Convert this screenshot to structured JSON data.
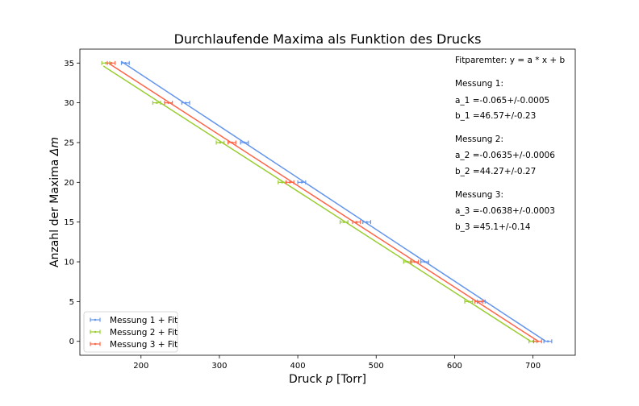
{
  "chart_data": {
    "type": "scatter",
    "title": "Durchlaufende Maxima als Funktion des Drucks",
    "xlabel_prefix": "Druck ",
    "xlabel_var": "p",
    "xlabel_suffix": " [Torr]",
    "ylabel_prefix": "Anzahl der Maxima ",
    "ylabel_var": "Δm",
    "xlim": [
      122,
      754
    ],
    "ylim": [
      -1.75,
      36.75
    ],
    "xticks": [
      200,
      300,
      400,
      500,
      600,
      700
    ],
    "yticks": [
      0,
      5,
      10,
      15,
      20,
      25,
      30,
      35
    ],
    "grid": false,
    "legend_placement": "lower-left",
    "series": [
      {
        "name": "Messung 1 + Fit",
        "color": "#6495ed",
        "x": [
          180,
          257,
          332,
          405,
          488,
          562,
          634,
          719
        ],
        "y": [
          35,
          30,
          25,
          20,
          15,
          10,
          5,
          0
        ],
        "xerr": 5,
        "fit": {
          "a": -0.065,
          "b": 46.57,
          "x_range": [
            175,
            716
          ]
        }
      },
      {
        "name": "Messung 2 + Fit",
        "color": "#9acd32",
        "x": [
          155,
          220,
          301,
          380,
          459,
          540,
          618,
          700
        ],
        "y": [
          35,
          30,
          25,
          20,
          15,
          10,
          5,
          0
        ],
        "xerr": 5,
        "fit": {
          "a": -0.0635,
          "b": 44.27,
          "x_range": [
            152,
            697
          ]
        }
      },
      {
        "name": "Messung 3 + Fit",
        "color": "#ff6347",
        "x": [
          162,
          235,
          316,
          390,
          475,
          549,
          631,
          706
        ],
        "y": [
          35,
          30,
          25,
          20,
          15,
          10,
          5,
          0
        ],
        "xerr": 5,
        "fit": {
          "a": -0.0638,
          "b": 45.1,
          "x_range": [
            160,
            707
          ]
        }
      }
    ],
    "annotations": [
      "Fitparemter: y = a * x + b",
      "Messung 1:",
      "a_1 =-0.065+/-0.0005",
      "b_1 =46.57+/-0.23",
      "Messung 2:",
      "a_2 =-0.0635+/-0.0006",
      "b_2 =44.27+/-0.27",
      "Messung 3:",
      "a_3 =-0.0638+/-0.0003",
      "b_3 =45.1+/-0.14"
    ]
  }
}
